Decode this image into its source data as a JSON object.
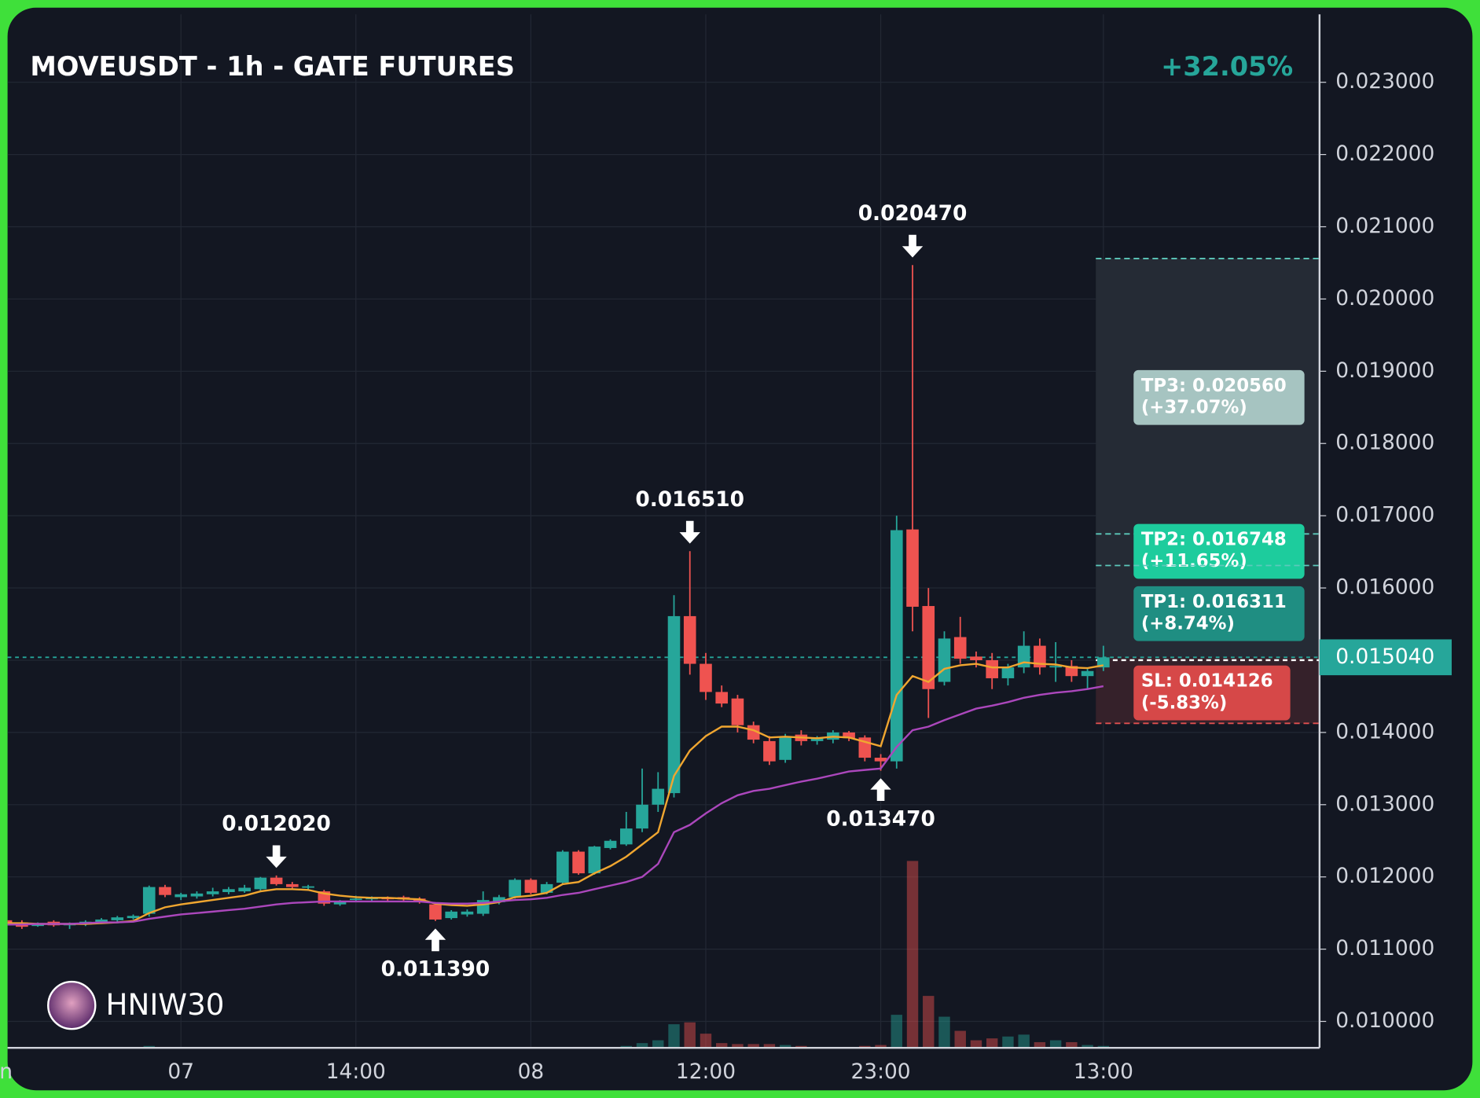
{
  "chart_data": {
    "type": "candlestick",
    "title": "MOVEUSDT - 1h - GATE FUTURES",
    "change": "+32.05%",
    "watermark": "HNIW30",
    "categories": [
      "n",
      null,
      null,
      null,
      null,
      null,
      null,
      null,
      null,
      null,
      null,
      "07",
      null,
      null,
      null,
      null,
      null,
      null,
      null,
      null,
      null,
      null,
      "14:00",
      null,
      null,
      null,
      null,
      null,
      null,
      null,
      null,
      null,
      null,
      "08",
      null,
      null,
      null,
      null,
      null,
      null,
      null,
      null,
      null,
      null,
      "12:00",
      null,
      null,
      null,
      null,
      null,
      null,
      null,
      null,
      null,
      null,
      "23:00",
      null,
      null,
      null,
      null,
      null,
      null,
      null,
      null,
      null,
      null,
      null,
      null,
      null,
      "13:00"
    ],
    "open": [
      0.0114,
      0.01137,
      0.01133,
      0.01138,
      0.01133,
      0.01134,
      0.01137,
      0.0114,
      0.01143,
      0.01149,
      0.01186,
      0.01172,
      0.01173,
      0.01176,
      0.01179,
      0.0118,
      0.01183,
      0.01199,
      0.0119,
      0.01185,
      0.0118,
      0.01162,
      0.01169,
      0.0117,
      0.01171,
      0.01172,
      0.0117,
      0.01162,
      0.01143,
      0.01148,
      0.01149,
      0.01165,
      0.01172,
      0.01196,
      0.01178,
      0.01192,
      0.01235,
      0.01205,
      0.0124,
      0.01245,
      0.01267,
      0.013,
      0.01316,
      0.01561,
      0.01495,
      0.01456,
      0.01447,
      0.0141,
      0.01388,
      0.01362,
      0.01397,
      0.01388,
      0.0139,
      0.014,
      0.01393,
      0.01365,
      0.0136,
      0.01681,
      0.01575,
      0.0147,
      0.01532,
      0.01505,
      0.015,
      0.01475,
      0.0149,
      0.0152,
      0.0149,
      0.01492,
      0.01478,
      0.0149
    ],
    "high": [
      0.01142,
      0.0114,
      0.01137,
      0.0114,
      0.01137,
      0.0114,
      0.01143,
      0.01146,
      0.01148,
      0.01188,
      0.01189,
      0.01178,
      0.0118,
      0.01185,
      0.01186,
      0.01189,
      0.012,
      0.01202,
      0.01193,
      0.01189,
      0.01182,
      0.01168,
      0.01174,
      0.01173,
      0.01173,
      0.01174,
      0.01172,
      0.01165,
      0.01154,
      0.01155,
      0.0118,
      0.01175,
      0.01198,
      0.01198,
      0.01193,
      0.01237,
      0.01237,
      0.01243,
      0.01252,
      0.0129,
      0.0135,
      0.01345,
      0.0159,
      0.01651,
      0.0151,
      0.01465,
      0.01452,
      0.01415,
      0.01395,
      0.01398,
      0.01403,
      0.01395,
      0.01403,
      0.01402,
      0.01396,
      0.0137,
      0.017,
      0.02047,
      0.016,
      0.0154,
      0.0156,
      0.01512,
      0.0151,
      0.01495,
      0.0154,
      0.0153,
      0.01525,
      0.015,
      0.0149,
      0.0152
    ],
    "low": [
      0.01134,
      0.01128,
      0.01131,
      0.01131,
      0.01128,
      0.01132,
      0.01135,
      0.01138,
      0.01141,
      0.01145,
      0.01172,
      0.01168,
      0.0117,
      0.01173,
      0.01176,
      0.01178,
      0.01181,
      0.01188,
      0.01184,
      0.01182,
      0.0116,
      0.0116,
      0.01166,
      0.01167,
      0.01167,
      0.01167,
      0.01163,
      0.01139,
      0.01141,
      0.01145,
      0.01146,
      0.01162,
      0.0117,
      0.01176,
      0.01176,
      0.0119,
      0.01203,
      0.01203,
      0.01238,
      0.01243,
      0.01262,
      0.0129,
      0.0131,
      0.0148,
      0.01445,
      0.01435,
      0.014,
      0.01385,
      0.01355,
      0.01358,
      0.01382,
      0.01383,
      0.01385,
      0.01388,
      0.0136,
      0.01347,
      0.0135,
      0.0154,
      0.0142,
      0.01465,
      0.01495,
      0.0149,
      0.0146,
      0.01465,
      0.01482,
      0.0148,
      0.0147,
      0.0147,
      0.0146,
      0.01485
    ],
    "close": [
      0.01137,
      0.01131,
      0.01134,
      0.01133,
      0.01135,
      0.01138,
      0.01141,
      0.01144,
      0.01146,
      0.01186,
      0.01175,
      0.01176,
      0.01177,
      0.0118,
      0.01183,
      0.01185,
      0.01199,
      0.0119,
      0.01186,
      0.01187,
      0.01163,
      0.01165,
      0.0117,
      0.01171,
      0.0117,
      0.01169,
      0.01166,
      0.01141,
      0.01152,
      0.01152,
      0.01168,
      0.01172,
      0.01196,
      0.01178,
      0.0119,
      0.01235,
      0.01205,
      0.01242,
      0.0125,
      0.01267,
      0.013,
      0.01322,
      0.01561,
      0.01495,
      0.01456,
      0.0144,
      0.0141,
      0.0139,
      0.0136,
      0.01395,
      0.01388,
      0.01392,
      0.014,
      0.01392,
      0.01365,
      0.0136,
      0.0168,
      0.01574,
      0.0146,
      0.0153,
      0.01502,
      0.015,
      0.01475,
      0.0149,
      0.0152,
      0.0149,
      0.01492,
      0.01478,
      0.01485,
      0.01504
    ],
    "volume": [
      1,
      1,
      1,
      1,
      1,
      1,
      1,
      1,
      1,
      2,
      1,
      1,
      1,
      1,
      1,
      1,
      1,
      1,
      1,
      1,
      1,
      1,
      1,
      1,
      1,
      1,
      1,
      1,
      1,
      1,
      1,
      1,
      1,
      1,
      1,
      1,
      1,
      1,
      1,
      2,
      5,
      8,
      25,
      27,
      15,
      5,
      4,
      4,
      4,
      3,
      2,
      1,
      1,
      1,
      2,
      3,
      35,
      198,
      55,
      33,
      18,
      8,
      10,
      12,
      14,
      6,
      8,
      6,
      3,
      2
    ],
    "up_color": "#26a69a",
    "down_color": "#ef5350",
    "series": [
      {
        "color": "#f0a630",
        "values": [
          0.01136,
          0.01136,
          0.01135,
          0.01135,
          0.01135,
          0.01135,
          0.01136,
          0.01137,
          0.01139,
          0.0115,
          0.01158,
          0.01162,
          0.01165,
          0.01168,
          0.01171,
          0.01174,
          0.0118,
          0.01183,
          0.01183,
          0.01182,
          0.01177,
          0.01174,
          0.01172,
          0.01171,
          0.01171,
          0.0117,
          0.01169,
          0.01163,
          0.01161,
          0.0116,
          0.01162,
          0.01165,
          0.01172,
          0.01174,
          0.01178,
          0.0119,
          0.01193,
          0.01205,
          0.01215,
          0.01228,
          0.01245,
          0.01262,
          0.0134,
          0.01375,
          0.01395,
          0.01408,
          0.01408,
          0.01403,
          0.01393,
          0.01394,
          0.01393,
          0.01392,
          0.01394,
          0.01393,
          0.01387,
          0.01381,
          0.01452,
          0.01478,
          0.0147,
          0.01488,
          0.01493,
          0.01495,
          0.0149,
          0.0149,
          0.01497,
          0.01495,
          0.01494,
          0.0149,
          0.01489,
          0.01493
        ]
      },
      {
        "color": "#ab47bc",
        "values": [
          0.01134,
          0.01134,
          0.01135,
          0.01135,
          0.01135,
          0.01136,
          0.01137,
          0.01137,
          0.01138,
          0.01142,
          0.01145,
          0.01148,
          0.0115,
          0.01152,
          0.01154,
          0.01156,
          0.01159,
          0.01162,
          0.01164,
          0.01165,
          0.01166,
          0.01166,
          0.01166,
          0.01166,
          0.01166,
          0.01166,
          0.01166,
          0.01164,
          0.01163,
          0.01163,
          0.01164,
          0.01166,
          0.01168,
          0.01169,
          0.01171,
          0.01175,
          0.01178,
          0.01183,
          0.01188,
          0.01193,
          0.012,
          0.01218,
          0.01262,
          0.01272,
          0.01288,
          0.01302,
          0.01313,
          0.01319,
          0.01322,
          0.01327,
          0.01332,
          0.01336,
          0.01341,
          0.01346,
          0.01348,
          0.0135,
          0.0138,
          0.01403,
          0.01408,
          0.01417,
          0.01425,
          0.01433,
          0.01437,
          0.01442,
          0.01448,
          0.01452,
          0.01455,
          0.01457,
          0.0146,
          0.01464
        ]
      }
    ],
    "annotations": [
      {
        "text": "0.012020",
        "value": 0.01202,
        "position": "above"
      },
      {
        "text": "0.011390",
        "value": 0.01139,
        "position": "below"
      },
      {
        "text": "0.016510",
        "value": 0.01651,
        "position": "above"
      },
      {
        "text": "0.020470",
        "value": 0.02047,
        "position": "above"
      },
      {
        "text": "0.013470",
        "value": 0.01347,
        "position": "below"
      }
    ],
    "last_price": {
      "value": 0.01504,
      "label": "0.015040",
      "color": "#26a69a"
    },
    "levels": [
      {
        "label": "TP3: 0.020560",
        "change": "(+37.07%)",
        "value": 0.02056,
        "color": "#a6c4c1",
        "line_color": "#5cc9bb"
      },
      {
        "label": "TP2: 0.016748",
        "change": "(+11.65%)",
        "value": 0.016748,
        "color": "#1dcc9d",
        "line_color": "#5cc9bb"
      },
      {
        "label": "TP1: 0.016311",
        "change": "(+8.74%)",
        "value": 0.016311,
        "color": "#1f8e82",
        "line_color": "#5cc9bb"
      },
      {
        "label": "SL: 0.014126",
        "change": "(-5.83%)",
        "value": 0.014126,
        "color": "#d64848",
        "line_color": "#e05050"
      }
    ],
    "ylim": [
      0.009634,
      0.023941
    ],
    "yticks": [
      {
        "value": 0.023,
        "label": "0.023000"
      },
      {
        "value": 0.022,
        "label": "0.022000"
      },
      {
        "value": 0.021,
        "label": "0.021000"
      },
      {
        "value": 0.02,
        "label": "0.020000"
      },
      {
        "value": 0.019,
        "label": "0.019000"
      },
      {
        "value": 0.018,
        "label": "0.018000"
      },
      {
        "value": 0.017,
        "label": "0.017000"
      },
      {
        "value": 0.016,
        "label": "0.016000"
      },
      {
        "value": 0.015,
        "label": "0.015000"
      },
      {
        "value": 0.014,
        "label": "0.014000"
      },
      {
        "value": 0.013,
        "label": "0.013000"
      },
      {
        "value": 0.012,
        "label": "0.012000"
      },
      {
        "value": 0.011,
        "label": "0.011000"
      },
      {
        "value": 0.01,
        "label": "0.010000"
      }
    ],
    "grid": true
  }
}
